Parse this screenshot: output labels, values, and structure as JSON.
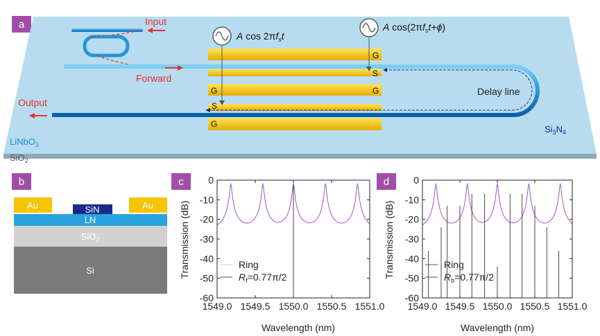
{
  "panels": {
    "a": "a",
    "b": "b",
    "c": "c",
    "d": "d"
  },
  "colors": {
    "tag": "#a24ea8",
    "chip": "#b7dcef",
    "ring": "#9b55c9",
    "au": "#f7c400",
    "ln": "#29a3df",
    "sin": "#1a2a8c"
  },
  "diagram_a": {
    "input": "Input",
    "forward": "Forward",
    "output": "Output",
    "delay": "Delay line",
    "eq1_a": "A",
    "eq1_b": "cos 2π",
    "eq1_f": "f",
    "eq1_s": "s",
    "eq1_t": "t",
    "eq2_a": "A",
    "eq2_b": "cos(2π",
    "eq2_f": "f",
    "eq2_s": "s",
    "eq2_t": "t+",
    "eq2_phi": "ϕ",
    "eq2_close": ")",
    "ln": "LiNbO",
    "ln_sub": "3",
    "sio2": "SiO",
    "sio2_sub": "2",
    "si3n4_a": "Si",
    "si3n4_3": "3",
    "si3n4_n": "N",
    "si3n4_4": "4",
    "g": "G",
    "s": "S"
  },
  "diagram_b": {
    "au_left": "Au",
    "au_right": "Au",
    "sin": "SiN",
    "ln": "LN",
    "sio2": "SiO",
    "sio2_sub": "2",
    "si": "Si"
  },
  "chart_data": [
    {
      "type": "line",
      "xlabel": "Wavelength (nm)",
      "ylabel": "Transmission (dB)",
      "xlim": [
        1549.0,
        1551.0
      ],
      "ylim": [
        -60,
        0
      ],
      "xticks": [
        "1549.0",
        "1549.5",
        "1550.0",
        "1550.5",
        "1551.0"
      ],
      "yticks": [
        "0",
        "-10",
        "-20",
        "-30",
        "-40",
        "-50",
        "-60"
      ],
      "legend": {
        "ring": "Ring",
        "r_main": "R",
        "r_sub": "f",
        "r_val": "=0.77π/2"
      },
      "ring": {
        "resonances": [
          1549.18,
          1549.6,
          1550.0,
          1550.42,
          1550.84
        ],
        "max_db": -2,
        "min_db": -27
      },
      "peaks": [
        {
          "x": 1550.0,
          "y_top": -2
        }
      ]
    },
    {
      "type": "line",
      "xlabel": "Wavelength (nm)",
      "ylabel": "Transmission (dB)",
      "xlim": [
        1549.0,
        1551.0
      ],
      "ylim": [
        -60,
        0
      ],
      "xticks": [
        "1549.0",
        "1549.5",
        "1550.0",
        "1550.5",
        "1551.0"
      ],
      "yticks": [
        "0",
        "-10",
        "-20",
        "-30",
        "-40",
        "-50",
        "-60"
      ],
      "legend": {
        "ring": "Ring",
        "r_main": "R",
        "r_sub": "b",
        "r_val": "=0.77π/2"
      },
      "ring": {
        "resonances": [
          1549.18,
          1549.6,
          1550.0,
          1550.42,
          1550.84
        ],
        "max_db": -2,
        "min_db": -27
      },
      "peaks": [
        {
          "x": 1549.08,
          "y_top": -36
        },
        {
          "x": 1549.25,
          "y_top": -24
        },
        {
          "x": 1549.33,
          "y_top": -13
        },
        {
          "x": 1549.5,
          "y_top": -13
        },
        {
          "x": 1549.66,
          "y_top": -7
        },
        {
          "x": 1549.83,
          "y_top": -7
        },
        {
          "x": 1550.0,
          "y_top": -44
        },
        {
          "x": 1550.17,
          "y_top": -7
        },
        {
          "x": 1550.33,
          "y_top": -7
        },
        {
          "x": 1550.5,
          "y_top": -13
        },
        {
          "x": 1550.66,
          "y_top": -24
        },
        {
          "x": 1550.82,
          "y_top": -36
        }
      ]
    }
  ]
}
